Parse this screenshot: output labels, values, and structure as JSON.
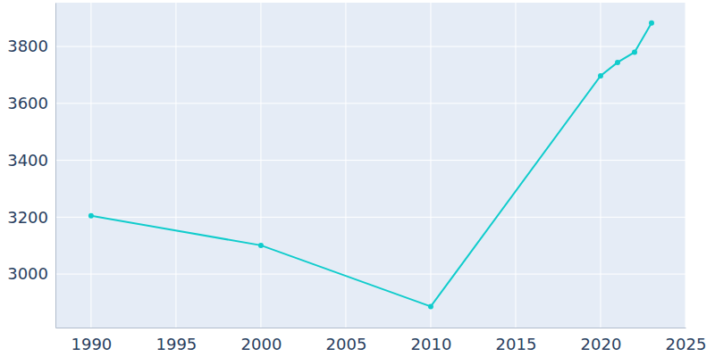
{
  "chart_data": {
    "type": "line",
    "x": [
      1990,
      2000,
      2010,
      2020,
      2021,
      2022,
      2023
    ],
    "values": [
      3205,
      3101,
      2886,
      3697,
      3744,
      3780,
      3883
    ],
    "color": "#10cccc",
    "marker": "circle",
    "xlim": [
      1987.9,
      2025
    ],
    "ylim": [
      2812,
      3954
    ],
    "xticks": [
      1990,
      1995,
      2000,
      2005,
      2010,
      2015,
      2020,
      2025
    ],
    "yticks": [
      3000,
      3200,
      3400,
      3600,
      3800
    ],
    "grid": true
  }
}
